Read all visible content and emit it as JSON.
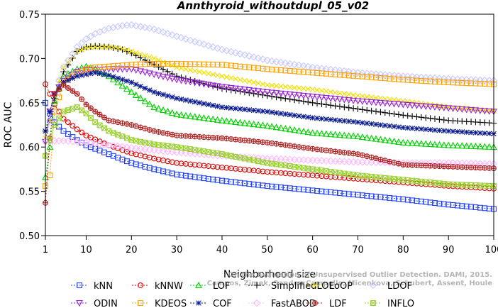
{
  "chart_data": {
    "type": "line",
    "title": "Annthyroid_withoutdupl_05_v02",
    "xlabel": "Neighborhood size",
    "ylabel": "ROC AUC",
    "xlim": [
      1,
      100
    ],
    "ylim": [
      0.5,
      0.75
    ],
    "xticks": [
      "1",
      "10",
      "20",
      "30",
      "40",
      "50",
      "60",
      "70",
      "80",
      "90",
      "100"
    ],
    "yticks": [
      "0.50",
      "0.55",
      "0.60",
      "0.65",
      "0.70",
      "0.75"
    ],
    "grid": false,
    "legend_position": "bottom",
    "watermark": [
      "Campos, Zimek, Sander, Campello, Micenkova, Schubert, Assent, Houle",
      "On the Evaluation of Unsupervised Outlier Detection. DAMI, 2015."
    ],
    "series": [
      {
        "name": "kNN",
        "color": "#1f3fff",
        "marker": "square",
        "x": [
          1,
          2,
          3,
          5,
          8,
          10,
          15,
          20,
          25,
          30,
          40,
          50,
          60,
          70,
          80,
          90,
          100
        ],
        "values": [
          0.65,
          0.638,
          0.628,
          0.618,
          0.608,
          0.602,
          0.592,
          0.582,
          0.575,
          0.569,
          0.562,
          0.556,
          0.551,
          0.546,
          0.541,
          0.535,
          0.53
        ]
      },
      {
        "name": "kNNW",
        "color": "#e00000",
        "marker": "circle",
        "x": [
          1,
          2,
          3,
          5,
          8,
          10,
          15,
          20,
          25,
          30,
          40,
          50,
          60,
          70,
          80,
          90,
          100
        ],
        "values": [
          0.671,
          0.66,
          0.648,
          0.632,
          0.62,
          0.613,
          0.602,
          0.593,
          0.587,
          0.582,
          0.577,
          0.572,
          0.568,
          0.564,
          0.56,
          0.556,
          0.553
        ]
      },
      {
        "name": "LOF",
        "color": "#00d000",
        "marker": "triangle-up",
        "x": [
          1,
          2,
          3,
          5,
          8,
          10,
          12,
          15,
          20,
          25,
          30,
          40,
          50,
          60,
          70,
          80,
          90,
          100
        ],
        "values": [
          0.566,
          0.6,
          0.652,
          0.68,
          0.688,
          0.691,
          0.688,
          0.68,
          0.662,
          0.645,
          0.637,
          0.63,
          0.624,
          0.616,
          0.612,
          0.605,
          0.602,
          0.6
        ]
      },
      {
        "name": "SimplifiedLOF",
        "color": "#000000",
        "marker": "plus",
        "x": [
          1,
          2,
          3,
          5,
          8,
          10,
          12,
          15,
          18,
          20,
          25,
          30,
          40,
          50,
          60,
          70,
          80,
          90,
          100
        ],
        "values": [
          0.618,
          0.63,
          0.655,
          0.685,
          0.708,
          0.713,
          0.714,
          0.713,
          0.71,
          0.706,
          0.693,
          0.68,
          0.666,
          0.658,
          0.65,
          0.643,
          0.636,
          0.63,
          0.627
        ]
      },
      {
        "name": "LoOP",
        "color": "#f0e000",
        "marker": "x",
        "x": [
          1,
          2,
          3,
          5,
          8,
          10,
          12,
          15,
          18,
          20,
          25,
          30,
          40,
          50,
          60,
          70,
          80,
          90,
          100
        ],
        "values": [
          0.61,
          0.63,
          0.66,
          0.69,
          0.708,
          0.712,
          0.713,
          0.713,
          0.711,
          0.708,
          0.7,
          0.69,
          0.68,
          0.67,
          0.665,
          0.658,
          0.652,
          0.645,
          0.641
        ]
      },
      {
        "name": "LDOF",
        "color": "#c8c8ff",
        "marker": "diamond",
        "x": [
          1,
          2,
          3,
          5,
          8,
          10,
          12,
          15,
          18,
          20,
          25,
          30,
          40,
          50,
          60,
          70,
          80,
          90,
          100
        ],
        "values": [
          0.606,
          0.63,
          0.66,
          0.69,
          0.713,
          0.722,
          0.728,
          0.734,
          0.737,
          0.738,
          0.733,
          0.725,
          0.71,
          0.698,
          0.69,
          0.684,
          0.68,
          0.677,
          0.675
        ]
      },
      {
        "name": "ODIN",
        "color": "#9a20d8",
        "marker": "triangle-down",
        "x": [
          1,
          2,
          3,
          5,
          8,
          10,
          12,
          15,
          20,
          25,
          30,
          40,
          50,
          60,
          70,
          80,
          90,
          100
        ],
        "values": [
          0.606,
          0.64,
          0.66,
          0.675,
          0.685,
          0.687,
          0.687,
          0.688,
          0.688,
          0.682,
          0.676,
          0.668,
          0.662,
          0.657,
          0.652,
          0.648,
          0.644,
          0.64
        ]
      },
      {
        "name": "KDEOS",
        "color": "#ffa000",
        "marker": "square",
        "x": [
          1,
          2,
          3,
          5,
          8,
          10,
          12,
          15,
          20,
          25,
          30,
          40,
          50,
          60,
          70,
          80,
          90,
          100
        ],
        "values": [
          0.556,
          0.568,
          0.64,
          0.672,
          0.684,
          0.688,
          0.69,
          0.691,
          0.693,
          0.694,
          0.694,
          0.693,
          0.688,
          0.684,
          0.68,
          0.676,
          0.673,
          0.671
        ]
      },
      {
        "name": "COF",
        "color": "#0a1a90",
        "marker": "asterisk",
        "x": [
          1,
          2,
          3,
          5,
          8,
          10,
          12,
          15,
          20,
          25,
          30,
          40,
          50,
          60,
          70,
          80,
          90,
          100
        ],
        "values": [
          0.618,
          0.64,
          0.66,
          0.673,
          0.68,
          0.682,
          0.684,
          0.681,
          0.673,
          0.662,
          0.655,
          0.645,
          0.64,
          0.633,
          0.628,
          0.622,
          0.618,
          0.615
        ]
      },
      {
        "name": "FastABOD",
        "color": "#ffb8ff",
        "marker": "diamond",
        "x": [
          1,
          2,
          3,
          5,
          8,
          10,
          15,
          20,
          30,
          40,
          50,
          60,
          70,
          80,
          90,
          100
        ],
        "values": [
          0.606,
          0.606,
          0.607,
          0.607,
          0.606,
          0.605,
          0.602,
          0.599,
          0.594,
          0.59,
          0.587,
          0.585,
          0.583,
          0.582,
          0.582,
          0.581
        ]
      },
      {
        "name": "LDF",
        "color": "#b02020",
        "marker": "circle-plus",
        "x": [
          1,
          2,
          3,
          5,
          8,
          10,
          12,
          15,
          20,
          25,
          30,
          40,
          50,
          60,
          70,
          80,
          90,
          100
        ],
        "values": [
          0.537,
          0.61,
          0.66,
          0.67,
          0.66,
          0.648,
          0.64,
          0.63,
          0.625,
          0.618,
          0.613,
          0.61,
          0.605,
          0.598,
          0.592,
          0.58,
          0.578,
          0.576
        ]
      },
      {
        "name": "INFLO",
        "color": "#9ad030",
        "marker": "square-x",
        "x": [
          1,
          2,
          3,
          5,
          8,
          10,
          12,
          15,
          20,
          25,
          30,
          40,
          50,
          60,
          70,
          80,
          90,
          100
        ],
        "values": [
          0.59,
          0.608,
          0.625,
          0.64,
          0.645,
          0.638,
          0.628,
          0.618,
          0.608,
          0.603,
          0.6,
          0.592,
          0.582,
          0.575,
          0.568,
          0.563,
          0.558,
          0.556
        ]
      }
    ]
  }
}
